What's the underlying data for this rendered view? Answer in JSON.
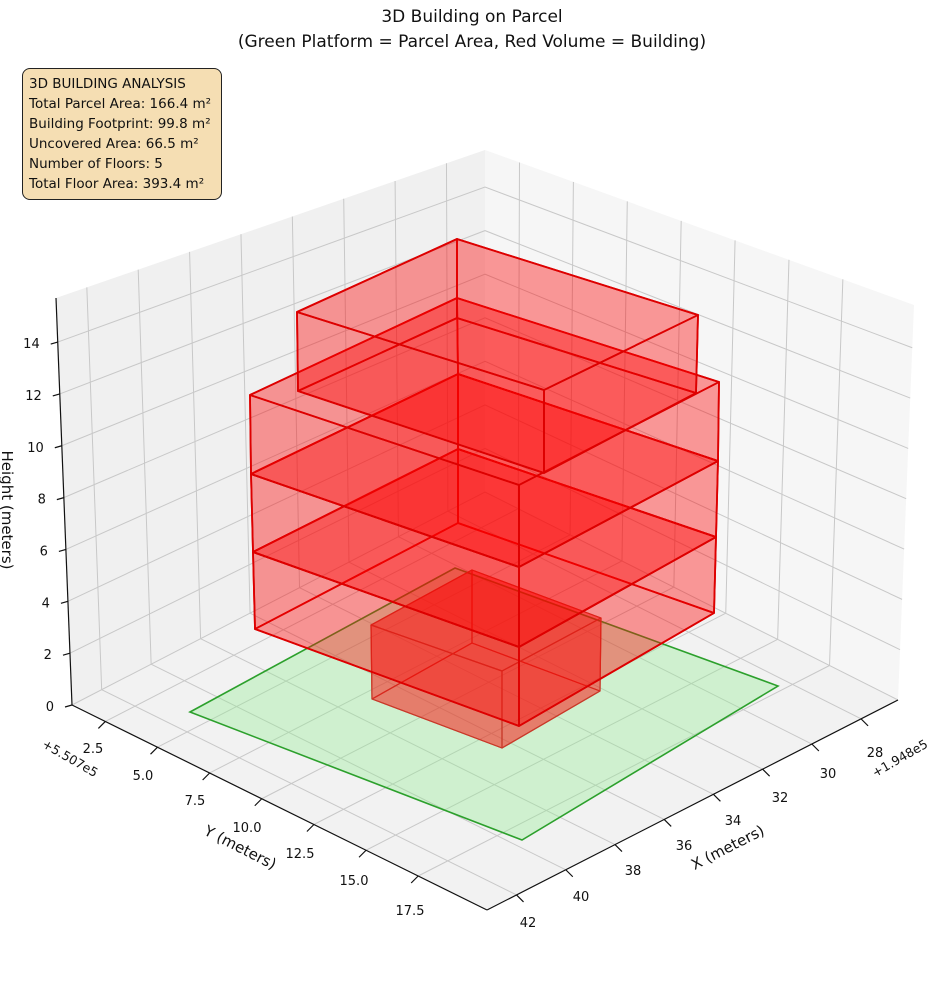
{
  "title": {
    "line1": "3D Building on Parcel",
    "line2": "(Green Platform = Parcel Area, Red Volume = Building)"
  },
  "info_box": {
    "lines": [
      "3D BUILDING ANALYSIS",
      "Total Parcel Area: 166.4 m²",
      "Building Footprint: 99.8 m²",
      "Uncovered Area: 66.5 m²",
      "Number of Floors: 5",
      "Total Floor Area: 393.4 m²"
    ],
    "background": "#f5deb3"
  },
  "chart_data": {
    "type": "3d-volume",
    "title": "3D Building on Parcel\n(Green Platform = Parcel Area, Red Volume = Building)",
    "xlabel": "X (meters)",
    "ylabel": "Y (meters)",
    "zlabel": "Height (meters)",
    "x_offset": "+1.948e5",
    "y_offset": "+5.507e5",
    "x_ticks": [
      "28",
      "30",
      "32",
      "34",
      "36",
      "38",
      "40",
      "42"
    ],
    "y_ticks": [
      "2.5",
      "5.0",
      "7.5",
      "10.0",
      "12.5",
      "15.0",
      "17.5"
    ],
    "z_ticks": [
      "0",
      "2",
      "4",
      "6",
      "8",
      "10",
      "12",
      "14"
    ],
    "xlim": [
      26.5,
      43.2
    ],
    "ylim": [
      0.9,
      20.8
    ],
    "zlim": [
      0,
      15.7
    ],
    "grid": true,
    "floors": 5,
    "colors": {
      "parcel_fill": "#90ee90",
      "parcel_edge": "#2ca02c",
      "building_fill": "#ff0000",
      "building_edge": "#dd0000"
    }
  }
}
